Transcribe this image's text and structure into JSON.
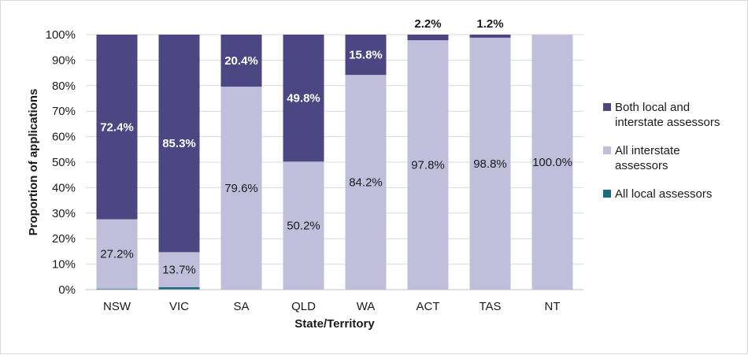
{
  "chart_data": {
    "type": "bar",
    "stacked": true,
    "categories": [
      "NSW",
      "VIC",
      "SA",
      "QLD",
      "WA",
      "ACT",
      "TAS",
      "NT"
    ],
    "series": [
      {
        "name": "All local assessors",
        "color": "#1a6b7c",
        "values": [
          0.4,
          1.0,
          0,
          0,
          0,
          0,
          0,
          0
        ],
        "labels": [
          "",
          "",
          "",
          "",
          "",
          "",
          "",
          ""
        ]
      },
      {
        "name": "All interstate assessors",
        "color": "#c0bedb",
        "values": [
          27.2,
          13.7,
          79.6,
          50.2,
          84.2,
          97.8,
          98.8,
          100.0
        ],
        "labels": [
          "27.2%",
          "13.7%",
          "79.6%",
          "50.2%",
          "84.2%",
          "97.8%",
          "98.8%",
          "100.0%"
        ]
      },
      {
        "name": "Both local and interstate assessors",
        "color": "#4c4682",
        "values": [
          72.4,
          85.3,
          20.4,
          49.8,
          15.8,
          2.2,
          1.2,
          0
        ],
        "labels": [
          "72.4%",
          "85.3%",
          "20.4%",
          "49.8%",
          "15.8%",
          "2.2%",
          "1.2%",
          ""
        ]
      }
    ],
    "xlabel": "State/Territory",
    "ylabel": "Proportion of applications",
    "ylim": [
      0,
      100
    ],
    "yticks": [
      "0%",
      "10%",
      "20%",
      "30%",
      "40%",
      "50%",
      "60%",
      "70%",
      "80%",
      "90%",
      "100%"
    ],
    "legend_position": "right",
    "legend": [
      {
        "lines": [
          "Both local and",
          "interstate assessors"
        ],
        "color": "#4c4682"
      },
      {
        "lines": [
          "All interstate",
          "assessors"
        ],
        "color": "#c0bedb"
      },
      {
        "lines": [
          "All local assessors"
        ],
        "color": "#1a6b7c"
      }
    ],
    "gridlines": true
  }
}
